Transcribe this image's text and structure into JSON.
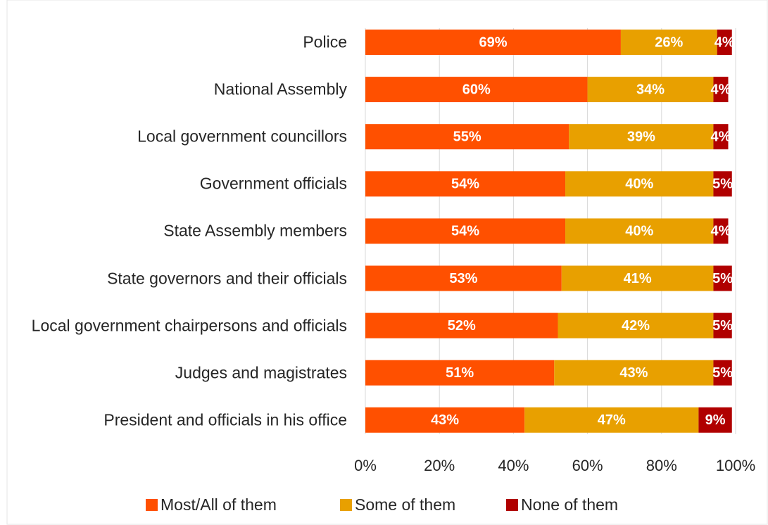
{
  "chart_data": {
    "type": "stacked-bar-horizontal",
    "categories": [
      "Police",
      "National Assembly",
      "Local government councillors",
      "Government officials",
      "State Assembly members",
      "State governors and their officials",
      "Local government chairpersons and officials",
      "Judges and magistrates",
      "President and officials in his office"
    ],
    "series": [
      {
        "name": "Most/All of them",
        "color": "#ff5000",
        "values": [
          69,
          60,
          55,
          54,
          54,
          53,
          52,
          51,
          43
        ],
        "value_labels": [
          "69%",
          "60%",
          "55%",
          "54%",
          "54%",
          "53%",
          "52%",
          "51%",
          "43%"
        ]
      },
      {
        "name": "Some of them",
        "color": "#e8a000",
        "values": [
          26,
          34,
          39,
          40,
          40,
          41,
          42,
          43,
          47
        ],
        "value_labels": [
          "26%",
          "34%",
          "39%",
          "40%",
          "40%",
          "41%",
          "42%",
          "43%",
          "47%"
        ]
      },
      {
        "name": "None of them",
        "color": "#b00000",
        "values": [
          4,
          4,
          4,
          5,
          4,
          5,
          5,
          5,
          9
        ],
        "value_labels": [
          "4%",
          "4%",
          "4%",
          "5%",
          "4%",
          "5%",
          "5%",
          "5%",
          "9%"
        ]
      }
    ],
    "xlim": [
      0,
      100
    ],
    "xticks": [
      {
        "value": 0,
        "label": "0%"
      },
      {
        "value": 20,
        "label": "20%"
      },
      {
        "value": 40,
        "label": "40%"
      },
      {
        "value": 60,
        "label": "60%"
      },
      {
        "value": 80,
        "label": "80%"
      },
      {
        "value": 100,
        "label": "100%"
      }
    ],
    "grid": true,
    "legend": "bottom"
  }
}
